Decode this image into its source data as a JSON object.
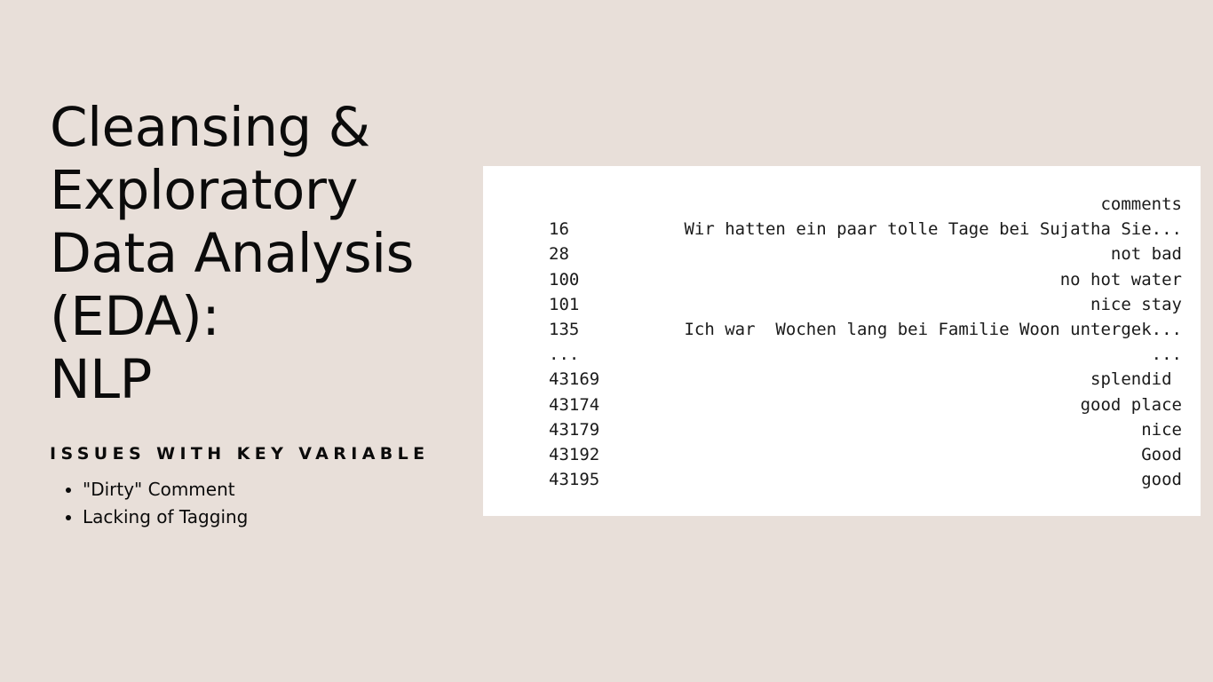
{
  "slide": {
    "title_lines": [
      "Cleansing &",
      "Exploratory",
      "Data Analysis",
      "(EDA):",
      "NLP"
    ],
    "subtitle": "ISSUES WITH KEY VARIABLE",
    "bullets": [
      "\"Dirty\" Comment",
      "Lacking of Tagging"
    ]
  },
  "dataframe": {
    "column": "comments",
    "rows": [
      {
        "index": "16",
        "value": "Wir hatten ein paar tolle Tage bei Sujatha Sie..."
      },
      {
        "index": "28",
        "value": "not bad"
      },
      {
        "index": "100",
        "value": "no hot water"
      },
      {
        "index": "101",
        "value": "nice stay"
      },
      {
        "index": "135",
        "value": "Ich war  Wochen lang bei Familie Woon untergek..."
      },
      {
        "index": "...",
        "value": "..."
      },
      {
        "index": "43169",
        "value": "splendid "
      },
      {
        "index": "43174",
        "value": "good place"
      },
      {
        "index": "43179",
        "value": "nice"
      },
      {
        "index": "43192",
        "value": "Good"
      },
      {
        "index": "43195",
        "value": "good"
      }
    ]
  }
}
